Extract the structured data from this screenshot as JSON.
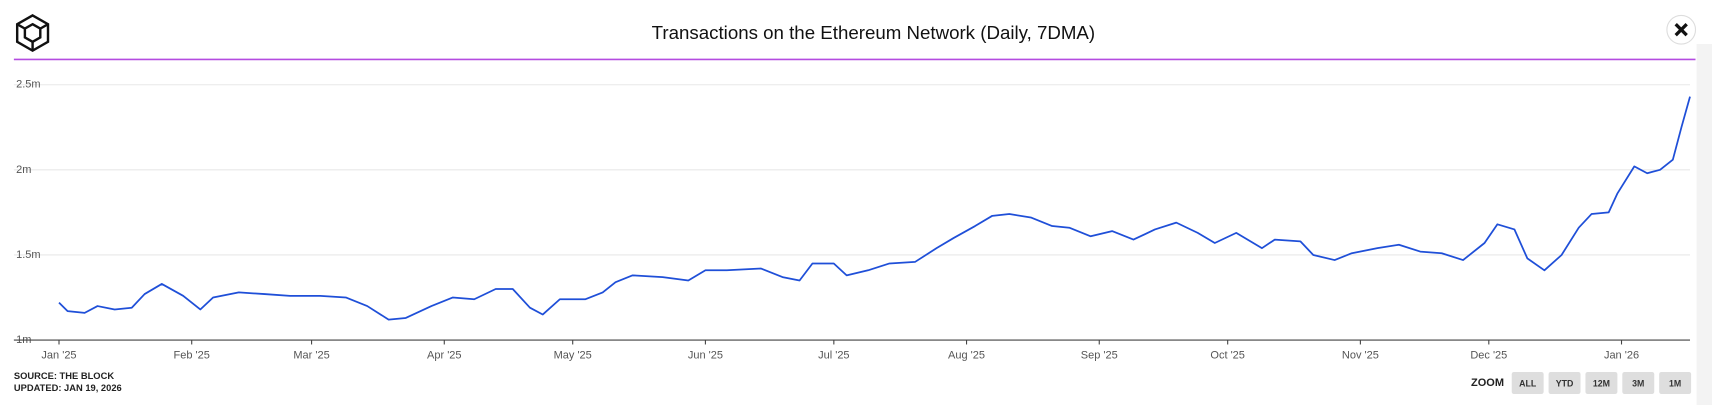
{
  "chart_data": {
    "type": "line",
    "title": "Transactions on the Ethereum Network (Daily, 7DMA)",
    "color": "#1f4fd8",
    "grid": true,
    "x": [
      "2025-01-01",
      "2025-01-03",
      "2025-01-07",
      "2025-01-10",
      "2025-01-14",
      "2025-01-18",
      "2025-01-21",
      "2025-01-25",
      "2025-01-30",
      "2025-02-03",
      "2025-02-06",
      "2025-02-12",
      "2025-02-18",
      "2025-02-24",
      "2025-03-03",
      "2025-03-09",
      "2025-03-14",
      "2025-03-19",
      "2025-03-23",
      "2025-03-29",
      "2025-04-03",
      "2025-04-08",
      "2025-04-13",
      "2025-04-17",
      "2025-04-21",
      "2025-04-24",
      "2025-04-28",
      "2025-05-04",
      "2025-05-08",
      "2025-05-11",
      "2025-05-15",
      "2025-05-22",
      "2025-05-28",
      "2025-06-01",
      "2025-06-06",
      "2025-06-14",
      "2025-06-19",
      "2025-06-23",
      "2025-06-26",
      "2025-07-01",
      "2025-07-04",
      "2025-07-09",
      "2025-07-14",
      "2025-07-20",
      "2025-07-25",
      "2025-07-29",
      "2025-08-03",
      "2025-08-07",
      "2025-08-11",
      "2025-08-16",
      "2025-08-21",
      "2025-08-25",
      "2025-08-30",
      "2025-09-04",
      "2025-09-09",
      "2025-09-14",
      "2025-09-19",
      "2025-09-24",
      "2025-09-28",
      "2025-10-03",
      "2025-10-09",
      "2025-10-12",
      "2025-10-18",
      "2025-10-21",
      "2025-10-26",
      "2025-10-30",
      "2025-11-05",
      "2025-11-10",
      "2025-11-15",
      "2025-11-20",
      "2025-11-25",
      "2025-11-30",
      "2025-12-03",
      "2025-12-07",
      "2025-12-10",
      "2025-12-14",
      "2025-12-18",
      "2025-12-22",
      "2025-12-25",
      "2025-12-29",
      "2025-12-31",
      "2026-01-04",
      "2026-01-07",
      "2026-01-10",
      "2026-01-13",
      "2026-01-15",
      "2026-01-17"
    ],
    "values": [
      1220000,
      1170000,
      1160000,
      1200000,
      1180000,
      1190000,
      1270000,
      1330000,
      1260000,
      1180000,
      1250000,
      1280000,
      1270000,
      1260000,
      1260000,
      1250000,
      1200000,
      1120000,
      1130000,
      1200000,
      1250000,
      1240000,
      1300000,
      1300000,
      1190000,
      1150000,
      1240000,
      1240000,
      1280000,
      1340000,
      1380000,
      1370000,
      1350000,
      1410000,
      1410000,
      1420000,
      1370000,
      1350000,
      1450000,
      1450000,
      1380000,
      1410000,
      1450000,
      1460000,
      1540000,
      1600000,
      1670000,
      1730000,
      1740000,
      1720000,
      1670000,
      1660000,
      1610000,
      1640000,
      1590000,
      1650000,
      1690000,
      1630000,
      1570000,
      1630000,
      1540000,
      1590000,
      1580000,
      1500000,
      1470000,
      1510000,
      1540000,
      1560000,
      1520000,
      1510000,
      1470000,
      1570000,
      1680000,
      1650000,
      1480000,
      1410000,
      1500000,
      1660000,
      1740000,
      1750000,
      1860000,
      2020000,
      1980000,
      2000000,
      2060000,
      2250000,
      2430000
    ],
    "xlim": [
      "2025-01-01",
      "2026-01-17"
    ],
    "xticks": [
      {
        "value": "2025-01-01",
        "label": "Jan '25"
      },
      {
        "value": "2025-02-01",
        "label": "Feb '25"
      },
      {
        "value": "2025-03-01",
        "label": "Mar '25"
      },
      {
        "value": "2025-04-01",
        "label": "Apr '25"
      },
      {
        "value": "2025-05-01",
        "label": "May '25"
      },
      {
        "value": "2025-06-01",
        "label": "Jun '25"
      },
      {
        "value": "2025-07-01",
        "label": "Jul '25"
      },
      {
        "value": "2025-08-01",
        "label": "Aug '25"
      },
      {
        "value": "2025-09-01",
        "label": "Sep '25"
      },
      {
        "value": "2025-10-01",
        "label": "Oct '25"
      },
      {
        "value": "2025-11-01",
        "label": "Nov '25"
      },
      {
        "value": "2025-12-01",
        "label": "Dec '25"
      },
      {
        "value": "2026-01-01",
        "label": "Jan '26"
      }
    ],
    "ylim": [
      1000000,
      2500000
    ],
    "yticks": [
      {
        "value": 1000000,
        "label": "1m"
      },
      {
        "value": 1500000,
        "label": "1.5m"
      },
      {
        "value": 2000000,
        "label": "2m"
      },
      {
        "value": 2500000,
        "label": "2.5m"
      }
    ]
  },
  "footer": {
    "source": "SOURCE: THE BLOCK",
    "updated": "UPDATED: JAN 19, 2026"
  },
  "zoom": {
    "label": "ZOOM",
    "buttons": [
      "ALL",
      "YTD",
      "12M",
      "3M",
      "1M"
    ]
  }
}
